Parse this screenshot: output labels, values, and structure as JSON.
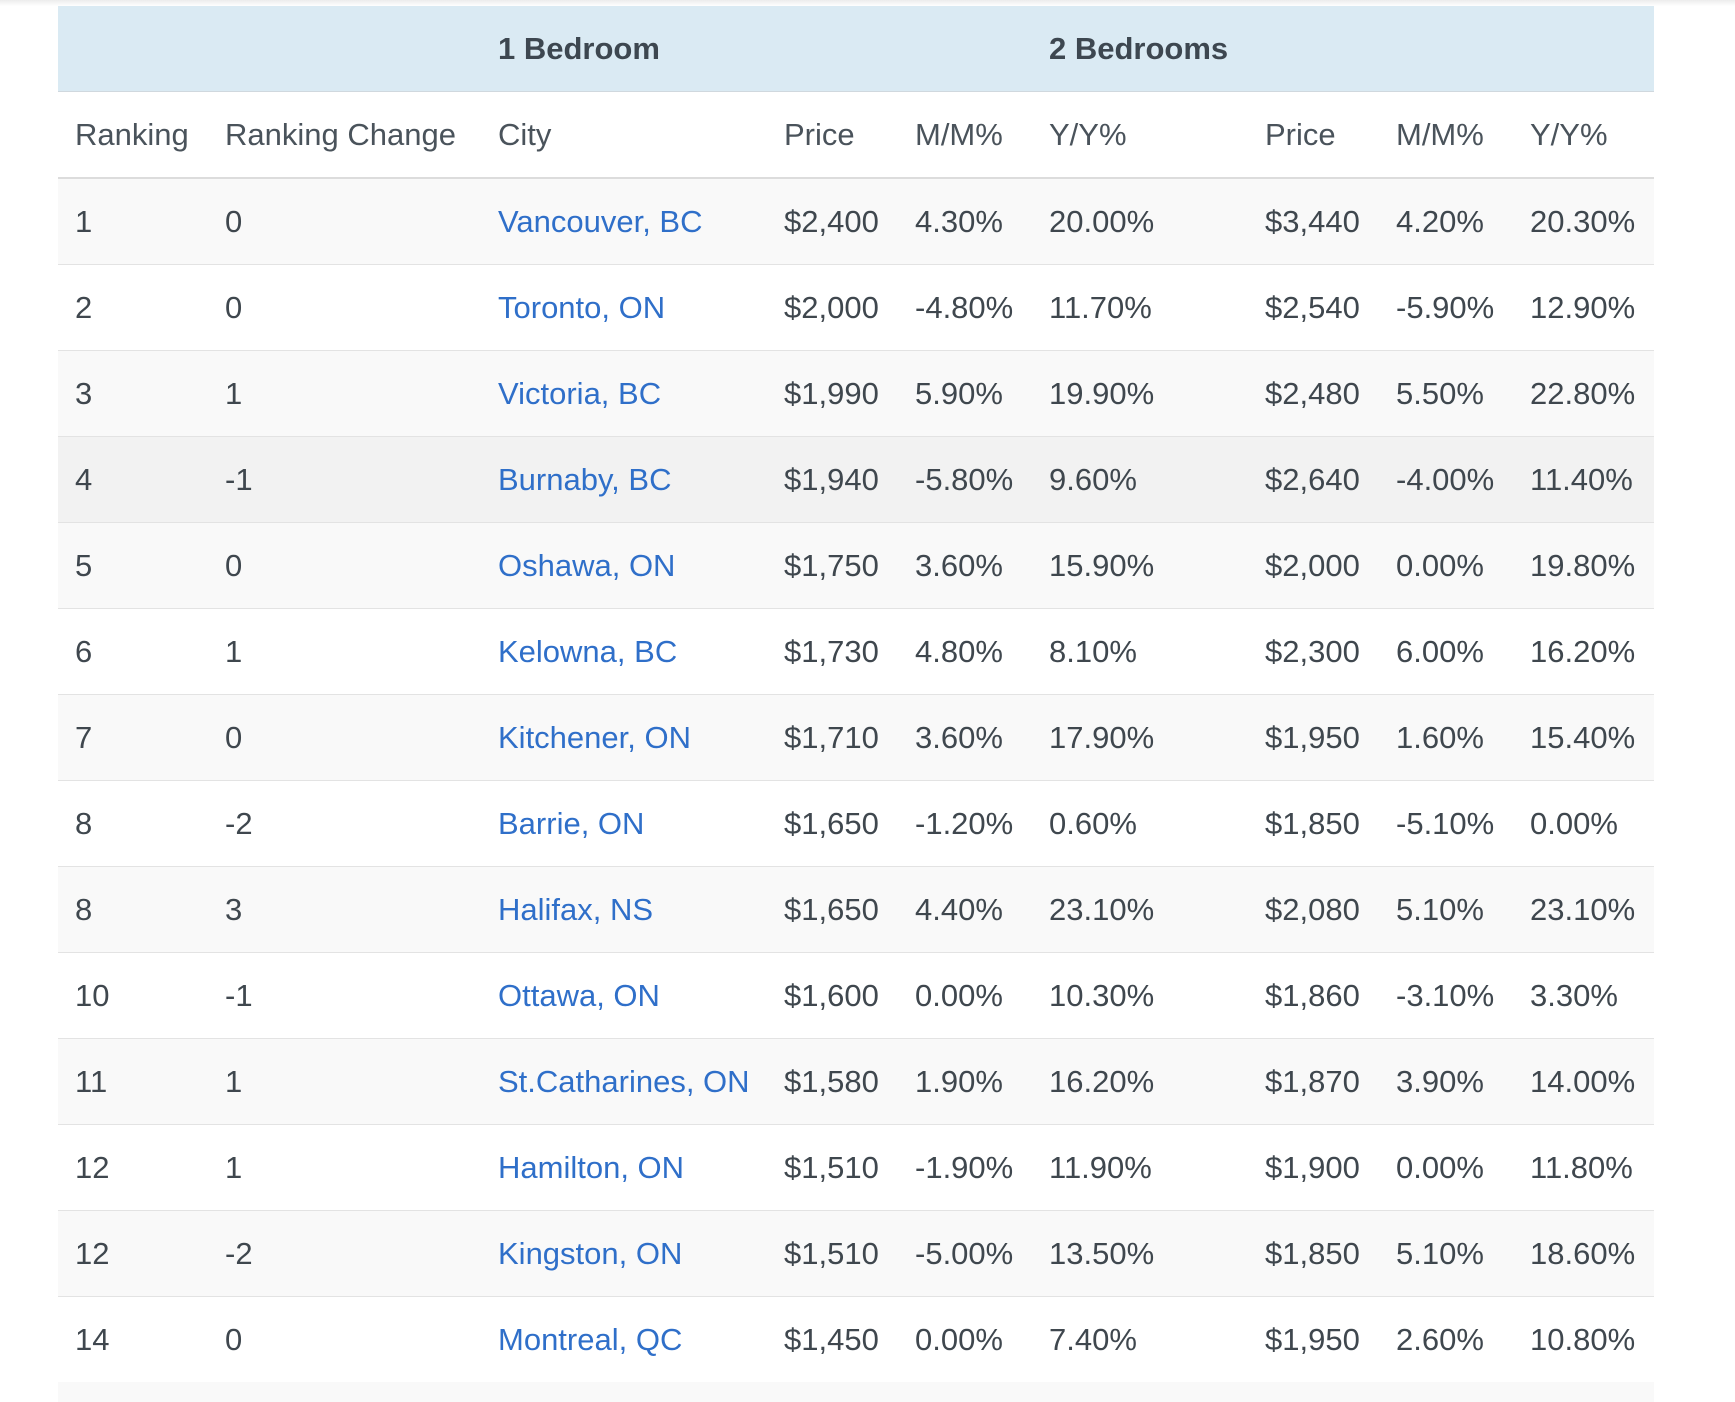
{
  "table": {
    "group_headers": {
      "one_bedroom": "1 Bedroom",
      "two_bedrooms": "2 Bedrooms"
    },
    "columns": [
      "Ranking",
      "Ranking Change",
      "City",
      "Price",
      "M/M%",
      "Y/Y%",
      "Price",
      "M/M%",
      "Y/Y%"
    ],
    "rows": [
      {
        "rank": "1",
        "change": "0",
        "city": "Vancouver, BC",
        "p1": "$2,400",
        "mm1": "4.30%",
        "yy1": "20.00%",
        "p2": "$3,440",
        "mm2": "4.20%",
        "yy2": "20.30%"
      },
      {
        "rank": "2",
        "change": "0",
        "city": "Toronto, ON",
        "p1": "$2,000",
        "mm1": "-4.80%",
        "yy1": "11.70%",
        "p2": "$2,540",
        "mm2": "-5.90%",
        "yy2": "12.90%"
      },
      {
        "rank": "3",
        "change": "1",
        "city": "Victoria, BC",
        "p1": "$1,990",
        "mm1": "5.90%",
        "yy1": "19.90%",
        "p2": "$2,480",
        "mm2": "5.50%",
        "yy2": "22.80%"
      },
      {
        "rank": "4",
        "change": "-1",
        "city": "Burnaby, BC",
        "p1": "$1,940",
        "mm1": "-5.80%",
        "yy1": "9.60%",
        "p2": "$2,640",
        "mm2": "-4.00%",
        "yy2": "11.40%"
      },
      {
        "rank": "5",
        "change": "0",
        "city": "Oshawa, ON",
        "p1": "$1,750",
        "mm1": "3.60%",
        "yy1": "15.90%",
        "p2": "$2,000",
        "mm2": "0.00%",
        "yy2": "19.80%"
      },
      {
        "rank": "6",
        "change": "1",
        "city": "Kelowna, BC",
        "p1": "$1,730",
        "mm1": "4.80%",
        "yy1": "8.10%",
        "p2": "$2,300",
        "mm2": "6.00%",
        "yy2": "16.20%"
      },
      {
        "rank": "7",
        "change": "0",
        "city": "Kitchener, ON",
        "p1": "$1,710",
        "mm1": "3.60%",
        "yy1": "17.90%",
        "p2": "$1,950",
        "mm2": "1.60%",
        "yy2": "15.40%"
      },
      {
        "rank": "8",
        "change": "-2",
        "city": "Barrie, ON",
        "p1": "$1,650",
        "mm1": "-1.20%",
        "yy1": "0.60%",
        "p2": "$1,850",
        "mm2": "-5.10%",
        "yy2": "0.00%"
      },
      {
        "rank": "8",
        "change": "3",
        "city": "Halifax, NS",
        "p1": "$1,650",
        "mm1": "4.40%",
        "yy1": "23.10%",
        "p2": "$2,080",
        "mm2": "5.10%",
        "yy2": "23.10%"
      },
      {
        "rank": "10",
        "change": "-1",
        "city": "Ottawa, ON",
        "p1": "$1,600",
        "mm1": "0.00%",
        "yy1": "10.30%",
        "p2": "$1,860",
        "mm2": "-3.10%",
        "yy2": "3.30%"
      },
      {
        "rank": "11",
        "change": "1",
        "city": "St.Catharines, ON",
        "p1": "$1,580",
        "mm1": "1.90%",
        "yy1": "16.20%",
        "p2": "$1,870",
        "mm2": "3.90%",
        "yy2": "14.00%"
      },
      {
        "rank": "12",
        "change": "1",
        "city": "Hamilton, ON",
        "p1": "$1,510",
        "mm1": "-1.90%",
        "yy1": "11.90%",
        "p2": "$1,900",
        "mm2": "0.00%",
        "yy2": "11.80%"
      },
      {
        "rank": "12",
        "change": "-2",
        "city": "Kingston, ON",
        "p1": "$1,510",
        "mm1": "-5.00%",
        "yy1": "13.50%",
        "p2": "$1,850",
        "mm2": "5.10%",
        "yy2": "18.60%"
      },
      {
        "rank": "14",
        "change": "0",
        "city": "Montreal, QC",
        "p1": "$1,450",
        "mm1": "0.00%",
        "yy1": "7.40%",
        "p2": "$1,950",
        "mm2": "2.60%",
        "yy2": "10.80%"
      }
    ]
  },
  "colors": {
    "group_header_bg": "#daeaf3",
    "link": "#2f6fc9",
    "row_stripe": "#f9f9f9",
    "row_hover": "#f2f2f2"
  }
}
